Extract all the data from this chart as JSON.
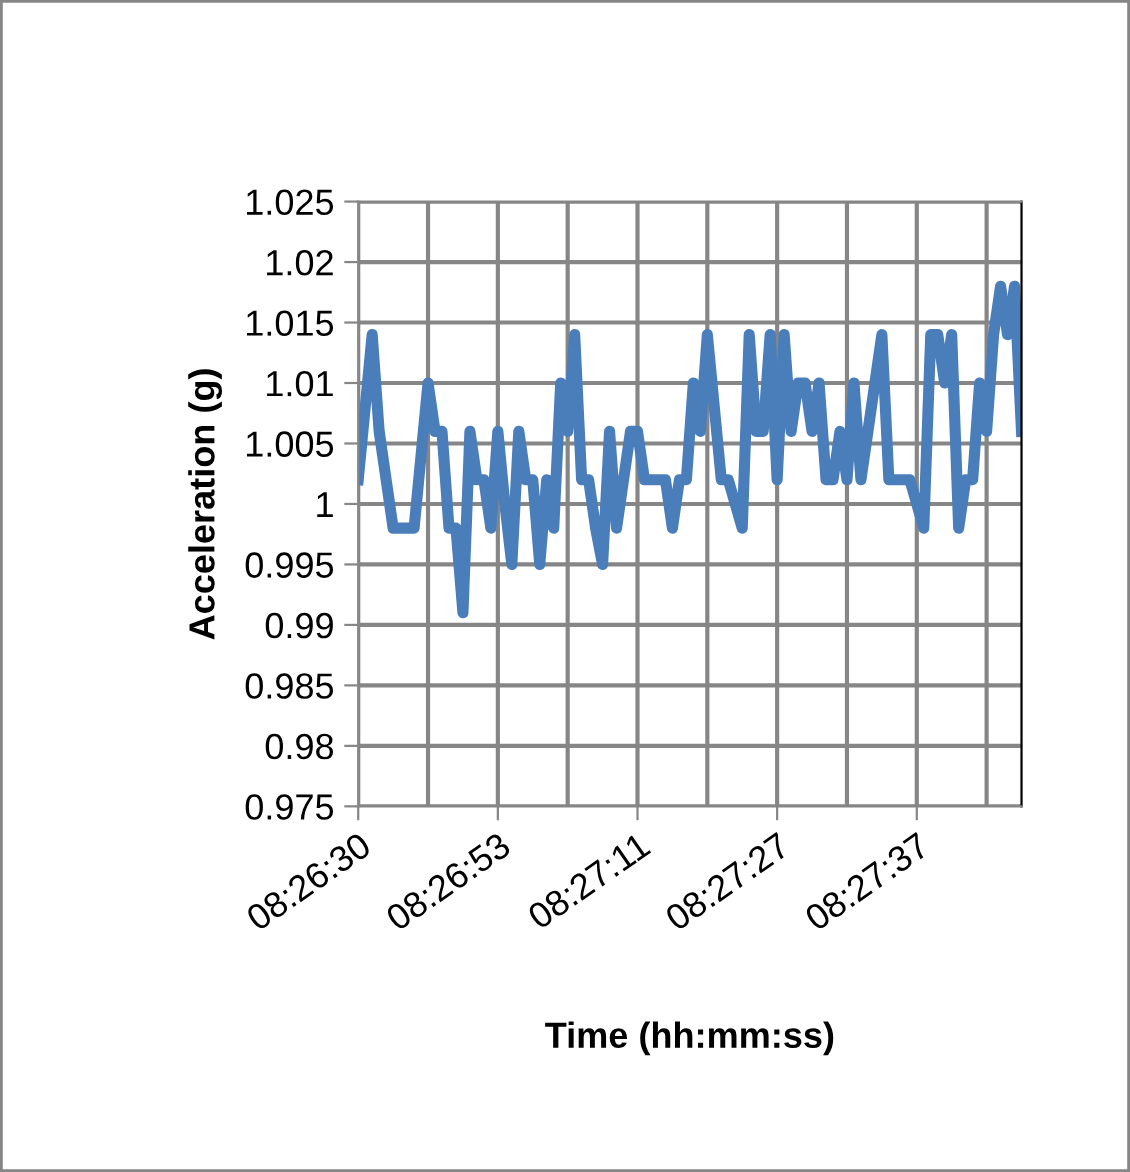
{
  "chart_data": {
    "type": "line",
    "xlabel": "Time (hh:mm:ss)",
    "ylabel": "Acceleration (g)",
    "categories": [
      "08:26:30",
      null,
      null,
      null,
      null,
      null,
      null,
      null,
      null,
      null,
      null,
      null,
      null,
      null,
      null,
      null,
      null,
      null,
      null,
      null,
      "08:26:53",
      null,
      null,
      null,
      null,
      null,
      null,
      null,
      null,
      null,
      null,
      null,
      null,
      null,
      null,
      null,
      null,
      null,
      null,
      null,
      "08:27:11",
      null,
      null,
      null,
      null,
      null,
      null,
      null,
      null,
      null,
      null,
      null,
      null,
      null,
      null,
      null,
      null,
      null,
      null,
      null,
      "08:27:27",
      null,
      null,
      null,
      null,
      null,
      null,
      null,
      null,
      null,
      null,
      null,
      null,
      null,
      null,
      null,
      null,
      null,
      null,
      null,
      "08:27:37",
      null,
      null,
      null,
      null,
      null,
      null,
      null,
      null,
      null,
      null,
      null,
      null,
      null,
      null,
      null
    ],
    "series": [
      {
        "color": "#4a7ebb",
        "values": [
          1.002,
          1.008,
          1.014,
          1.006,
          1.002,
          0.998,
          0.998,
          0.998,
          0.998,
          1.004,
          1.01,
          1.006,
          1.006,
          0.998,
          0.998,
          0.991,
          1.006,
          1.002,
          1.002,
          0.998,
          1.006,
          1.0,
          0.995,
          1.006,
          1.002,
          1.002,
          0.995,
          1.002,
          0.998,
          1.01,
          1.006,
          1.014,
          1.002,
          1.002,
          0.998,
          0.995,
          1.006,
          0.998,
          1.002,
          1.006,
          1.006,
          1.002,
          1.002,
          1.002,
          1.002,
          0.998,
          1.002,
          1.002,
          1.01,
          1.006,
          1.014,
          1.008,
          1.002,
          1.002,
          1.0,
          0.998,
          1.014,
          1.006,
          1.006,
          1.014,
          1.002,
          1.014,
          1.006,
          1.01,
          1.01,
          1.006,
          1.01,
          1.002,
          1.002,
          1.006,
          1.002,
          1.01,
          1.002,
          1.006,
          1.01,
          1.014,
          1.002,
          1.002,
          1.002,
          1.002,
          1.0,
          0.998,
          1.014,
          1.014,
          1.01,
          1.014,
          0.998,
          1.002,
          1.002,
          1.01,
          1.006,
          1.014,
          1.018,
          1.014,
          1.018,
          1.006
        ]
      }
    ],
    "ylim": [
      0.975,
      1.025
    ],
    "yticks": [
      0.975,
      0.98,
      0.985,
      0.99,
      0.995,
      1,
      1.005,
      1.01,
      1.015,
      1.02,
      1.025
    ],
    "grid": true,
    "marker": "none",
    "line_style": "solid"
  }
}
